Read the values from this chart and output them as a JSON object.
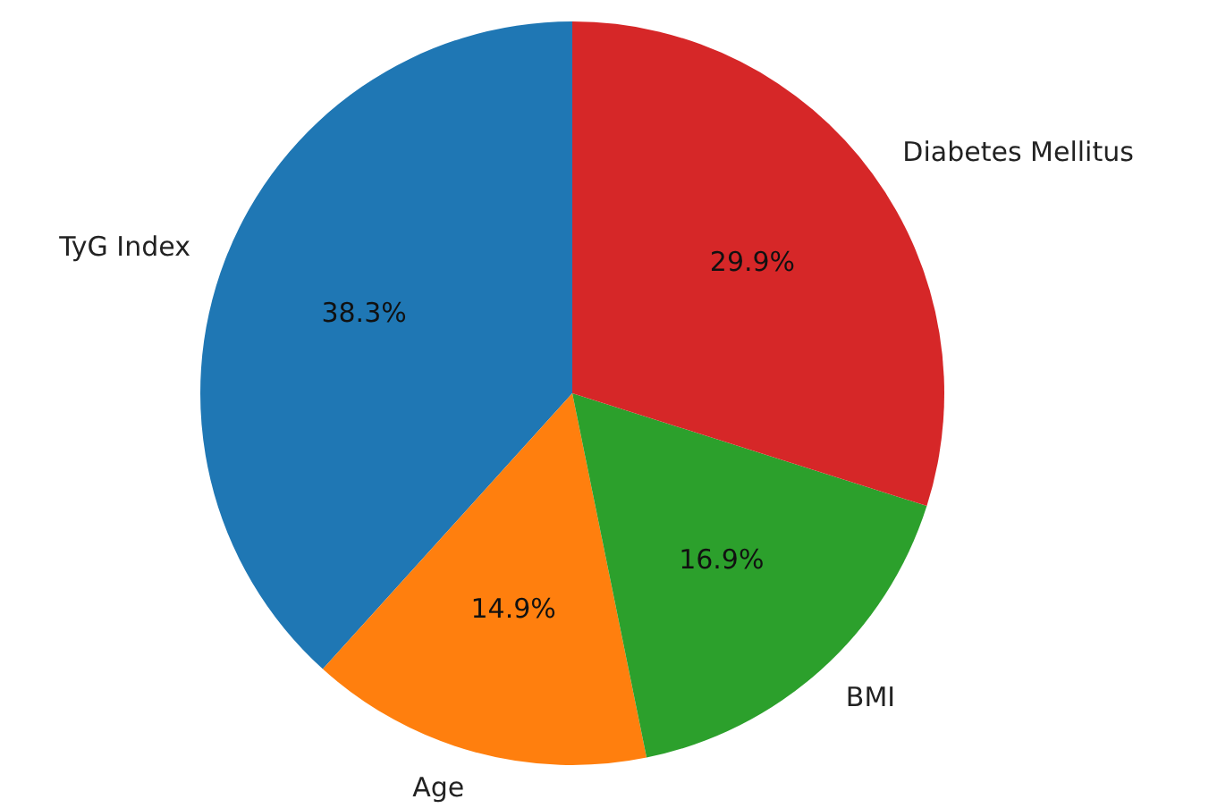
{
  "chart_data": {
    "type": "pie",
    "categories": [
      "TyG Index",
      "Age",
      "BMI",
      "Diabetes Mellitus"
    ],
    "values": [
      38.3,
      14.9,
      16.9,
      29.9
    ],
    "colors": [
      "#1f77b4",
      "#ff7f0e",
      "#2ca02c",
      "#d62728"
    ],
    "value_labels": [
      "38.3%",
      "14.9%",
      "16.9%",
      "29.9%"
    ]
  }
}
